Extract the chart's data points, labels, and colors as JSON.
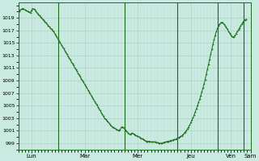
{
  "bg_color": "#c8eae0",
  "line_color": "#1a6e1a",
  "marker_color": "#1a6e1a",
  "grid_color_major": "#a8ccc0",
  "grid_color_minor": "#c0ddd5",
  "yticks": [
    999,
    1001,
    1003,
    1005,
    1007,
    1009,
    1011,
    1013,
    1015,
    1017,
    1019
  ],
  "ylim": [
    998.0,
    1021.5
  ],
  "day_labels": [
    "Lun",
    "Mar",
    "Mer",
    "Jeu",
    "Ven",
    "Sam"
  ],
  "day_tick_positions": [
    12,
    60,
    108,
    156,
    192,
    210
  ],
  "day_vline_positions": [
    0,
    36,
    96,
    144,
    180,
    204
  ],
  "pressure_data": [
    1020.0,
    1020.1,
    1020.3,
    1020.4,
    1020.5,
    1020.4,
    1020.3,
    1020.2,
    1020.1,
    1020.0,
    1019.9,
    1019.8,
    1020.2,
    1020.5,
    1020.4,
    1020.3,
    1020.1,
    1019.8,
    1019.6,
    1019.4,
    1019.2,
    1019.0,
    1018.8,
    1018.6,
    1018.4,
    1018.2,
    1018.0,
    1017.8,
    1017.6,
    1017.4,
    1017.2,
    1017.0,
    1016.8,
    1016.5,
    1016.2,
    1015.9,
    1015.6,
    1015.3,
    1015.0,
    1014.7,
    1014.4,
    1014.1,
    1013.8,
    1013.5,
    1013.2,
    1012.9,
    1012.6,
    1012.3,
    1012.0,
    1011.7,
    1011.4,
    1011.1,
    1010.8,
    1010.5,
    1010.2,
    1009.9,
    1009.6,
    1009.3,
    1009.0,
    1008.7,
    1008.4,
    1008.1,
    1007.8,
    1007.5,
    1007.2,
    1006.9,
    1006.6,
    1006.3,
    1006.0,
    1005.7,
    1005.4,
    1005.1,
    1004.8,
    1004.5,
    1004.2,
    1003.9,
    1003.6,
    1003.3,
    1003.0,
    1002.8,
    1002.6,
    1002.4,
    1002.2,
    1002.0,
    1001.8,
    1001.6,
    1001.5,
    1001.4,
    1001.3,
    1001.2,
    1001.1,
    1001.0,
    1001.2,
    1001.5,
    1001.6,
    1001.5,
    1001.3,
    1001.1,
    1000.9,
    1000.7,
    1000.5,
    1000.4,
    1000.5,
    1000.6,
    1000.5,
    1000.4,
    1000.3,
    1000.2,
    1000.1,
    1000.0,
    999.9,
    999.8,
    999.7,
    999.6,
    999.5,
    999.4,
    999.3,
    999.3,
    999.3,
    999.3,
    999.2,
    999.2,
    999.2,
    999.2,
    999.2,
    999.1,
    999.1,
    999.0,
    999.0,
    999.0,
    999.0,
    999.1,
    999.1,
    999.2,
    999.2,
    999.3,
    999.3,
    999.4,
    999.4,
    999.5,
    999.5,
    999.6,
    999.6,
    999.7,
    999.8,
    999.9,
    1000.0,
    1000.1,
    1000.2,
    1000.4,
    1000.6,
    1000.8,
    1001.0,
    1001.3,
    1001.6,
    1001.9,
    1002.3,
    1002.7,
    1003.1,
    1003.5,
    1004.0,
    1004.5,
    1005.0,
    1005.5,
    1006.0,
    1006.6,
    1007.2,
    1007.8,
    1008.5,
    1009.2,
    1010.0,
    1010.8,
    1011.6,
    1012.4,
    1013.2,
    1014.0,
    1014.8,
    1015.5,
    1016.2,
    1016.8,
    1017.3,
    1017.7,
    1018.0,
    1018.2,
    1018.3,
    1018.2,
    1018.0,
    1017.8,
    1017.5,
    1017.2,
    1016.9,
    1016.6,
    1016.3,
    1016.1,
    1015.9,
    1016.0,
    1016.2,
    1016.5,
    1016.8,
    1017.1,
    1017.4,
    1017.7,
    1018.0,
    1018.3,
    1018.5,
    1018.7,
    1018.8
  ]
}
